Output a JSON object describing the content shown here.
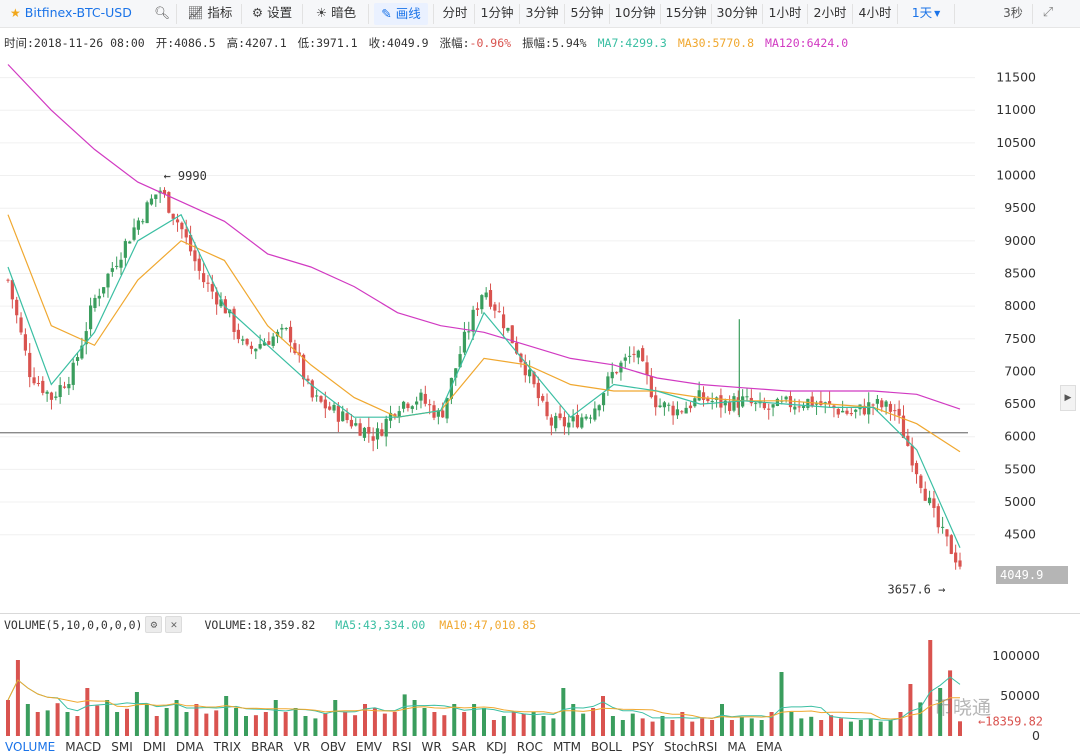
{
  "toolbar": {
    "symbol": "Bitfinex-BTC-USD",
    "indicators_label": "指标",
    "settings_label": "设置",
    "dark_label": "暗色",
    "draw_label": "画线",
    "periods": [
      "分时",
      "1分钟",
      "3分钟",
      "5分钟",
      "10分钟",
      "15分钟",
      "30分钟",
      "1小时",
      "2小时",
      "4小时",
      "1天"
    ],
    "active_period": "1天",
    "refresh": "3秒"
  },
  "info": {
    "time": "时间:2018-11-26 08:00",
    "open": "开:4086.5",
    "high": "高:4207.1",
    "low": "低:3971.1",
    "close": "收:4049.9",
    "change": "涨幅:-0.96%",
    "amplitude": "振幅:5.94%",
    "ma7": "MA7:4299.3",
    "ma30": "MA30:5770.8",
    "ma120": "MA120:6424.0"
  },
  "price_axis": [
    "11500",
    "11000",
    "10500",
    "10000",
    "9500",
    "9000",
    "8500",
    "8000",
    "7500",
    "7000",
    "6500",
    "6000",
    "5500",
    "5000",
    "4500"
  ],
  "annotations": {
    "high_marker": "9990",
    "low_marker": "3657.6",
    "current_price": "4049.9"
  },
  "volume": {
    "title": "VOLUME(5,10,0,0,0,0)",
    "value": "VOLUME:18,359.82",
    "ma5": "MA5:43,334.00",
    "ma10": "MA10:47,010.85",
    "axis": [
      "100000",
      "50000",
      "0"
    ],
    "last": "18359.82"
  },
  "watermark": "币晓通",
  "tabs": [
    "VOLUME",
    "MACD",
    "SMI",
    "DMI",
    "DMA",
    "TRIX",
    "BRAR",
    "VR",
    "OBV",
    "EMV",
    "RSI",
    "WR",
    "SAR",
    "KDJ",
    "ROC",
    "MTM",
    "BOLL",
    "PSY",
    "StochRSI",
    "MA",
    "EMA"
  ],
  "active_tab": "VOLUME",
  "colors": {
    "up": "#3a9d5d",
    "down": "#d9534f",
    "ma7": "#3bbfa3",
    "ma30": "#f0a830",
    "ma120": "#d13ac2",
    "accent": "#1a73e8"
  },
  "chart_data": {
    "type": "line",
    "ylim": [
      3500,
      11800
    ],
    "price_points": [
      {
        "day": 0,
        "close": 8400
      },
      {
        "day": 10,
        "close": 7000
      },
      {
        "day": 20,
        "close": 6600
      },
      {
        "day": 30,
        "close": 7000
      },
      {
        "day": 40,
        "close": 8100
      },
      {
        "day": 50,
        "close": 8700
      },
      {
        "day": 60,
        "close": 9300
      },
      {
        "day": 70,
        "close": 9800
      },
      {
        "day": 80,
        "close": 9200
      },
      {
        "day": 90,
        "close": 8400
      },
      {
        "day": 100,
        "close": 8000
      },
      {
        "day": 110,
        "close": 7300
      },
      {
        "day": 120,
        "close": 7500
      },
      {
        "day": 130,
        "close": 7600
      },
      {
        "day": 140,
        "close": 6600
      },
      {
        "day": 150,
        "close": 6400
      },
      {
        "day": 160,
        "close": 6200
      },
      {
        "day": 170,
        "close": 6000
      },
      {
        "day": 180,
        "close": 6500
      },
      {
        "day": 190,
        "close": 6600
      },
      {
        "day": 200,
        "close": 6300
      },
      {
        "day": 210,
        "close": 7400
      },
      {
        "day": 220,
        "close": 8300
      },
      {
        "day": 230,
        "close": 7700
      },
      {
        "day": 240,
        "close": 7000
      },
      {
        "day": 250,
        "close": 6200
      },
      {
        "day": 260,
        "close": 6200
      },
      {
        "day": 270,
        "close": 6400
      },
      {
        "day": 280,
        "close": 7000
      },
      {
        "day": 290,
        "close": 7300
      },
      {
        "day": 300,
        "close": 6500
      },
      {
        "day": 310,
        "close": 6400
      },
      {
        "day": 320,
        "close": 6600
      },
      {
        "day": 330,
        "close": 6500
      },
      {
        "day": 340,
        "close": 6550
      },
      {
        "day": 350,
        "close": 6400
      },
      {
        "day": 360,
        "close": 6500
      },
      {
        "day": 370,
        "close": 6550
      },
      {
        "day": 380,
        "close": 6450
      },
      {
        "day": 390,
        "close": 6350
      },
      {
        "day": 400,
        "close": 6500
      },
      {
        "day": 410,
        "close": 6400
      },
      {
        "day": 420,
        "close": 5500
      },
      {
        "day": 430,
        "close": 4600
      },
      {
        "day": 440,
        "close": 4050
      }
    ],
    "ma7": [
      [
        0,
        8600
      ],
      [
        20,
        6800
      ],
      [
        40,
        7600
      ],
      [
        60,
        9000
      ],
      [
        80,
        9400
      ],
      [
        100,
        8000
      ],
      [
        120,
        7400
      ],
      [
        140,
        6800
      ],
      [
        160,
        6300
      ],
      [
        180,
        6300
      ],
      [
        200,
        6400
      ],
      [
        220,
        7900
      ],
      [
        240,
        7100
      ],
      [
        260,
        6300
      ],
      [
        280,
        6800
      ],
      [
        300,
        6700
      ],
      [
        320,
        6500
      ],
      [
        340,
        6550
      ],
      [
        360,
        6500
      ],
      [
        380,
        6450
      ],
      [
        400,
        6450
      ],
      [
        420,
        5800
      ],
      [
        440,
        4300
      ]
    ],
    "ma30": [
      [
        0,
        9400
      ],
      [
        20,
        7700
      ],
      [
        40,
        7400
      ],
      [
        60,
        8400
      ],
      [
        80,
        9000
      ],
      [
        100,
        8700
      ],
      [
        120,
        7700
      ],
      [
        140,
        7100
      ],
      [
        160,
        6600
      ],
      [
        180,
        6300
      ],
      [
        200,
        6400
      ],
      [
        220,
        7200
      ],
      [
        240,
        7100
      ],
      [
        260,
        6800
      ],
      [
        280,
        6700
      ],
      [
        300,
        6700
      ],
      [
        320,
        6600
      ],
      [
        340,
        6550
      ],
      [
        360,
        6550
      ],
      [
        380,
        6500
      ],
      [
        400,
        6450
      ],
      [
        420,
        6200
      ],
      [
        440,
        5770
      ]
    ],
    "ma120": [
      [
        0,
        11700
      ],
      [
        20,
        11000
      ],
      [
        40,
        10400
      ],
      [
        60,
        9900
      ],
      [
        80,
        9600
      ],
      [
        100,
        9300
      ],
      [
        120,
        8800
      ],
      [
        140,
        8600
      ],
      [
        160,
        8300
      ],
      [
        180,
        7900
      ],
      [
        200,
        7700
      ],
      [
        220,
        7600
      ],
      [
        240,
        7400
      ],
      [
        260,
        7200
      ],
      [
        280,
        7100
      ],
      [
        300,
        6900
      ],
      [
        320,
        6800
      ],
      [
        340,
        6750
      ],
      [
        360,
        6700
      ],
      [
        380,
        6700
      ],
      [
        400,
        6700
      ],
      [
        420,
        6650
      ],
      [
        440,
        6424
      ]
    ],
    "volume": [
      45000,
      95000,
      40000,
      30000,
      32000,
      41000,
      30000,
      25000,
      60000,
      38000,
      45000,
      30000,
      34000,
      55000,
      40000,
      25000,
      35000,
      45000,
      30000,
      40000,
      28000,
      32000,
      50000,
      35000,
      25000,
      26000,
      30000,
      45000,
      30000,
      35000,
      25000,
      22000,
      28000,
      45000,
      30000,
      26000,
      40000,
      35000,
      28000,
      30000,
      52000,
      45000,
      35000,
      30000,
      26000,
      40000,
      30000,
      40000,
      35000,
      20000,
      25000,
      30000,
      28000,
      30000,
      25000,
      22000,
      60000,
      40000,
      28000,
      35000,
      50000,
      25000,
      20000,
      28000,
      22000,
      18000,
      25000,
      20000,
      30000,
      18000,
      22000,
      20000,
      40000,
      20000,
      24000,
      22000,
      20000,
      30000,
      80000,
      30000,
      22000,
      24000,
      20000,
      26000,
      22000,
      18000,
      20000,
      22000,
      18000,
      20000,
      30000,
      65000,
      42000,
      120000,
      60000,
      82000,
      18360
    ]
  }
}
